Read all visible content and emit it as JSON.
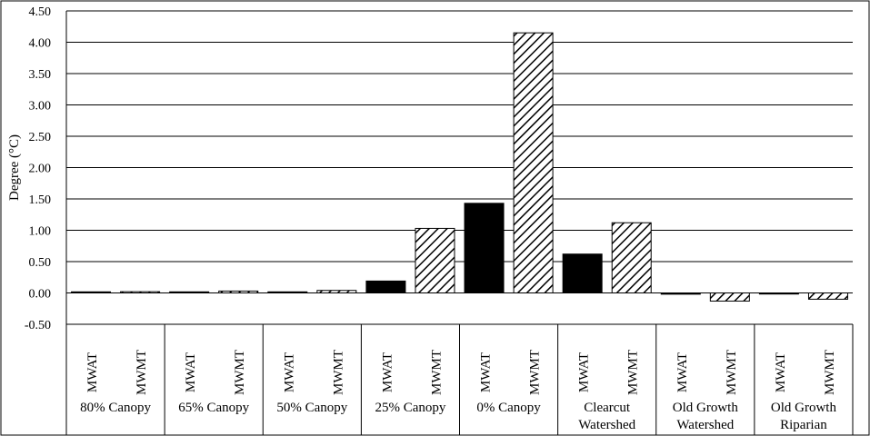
{
  "chart_data": {
    "type": "bar",
    "ylabel": "Degree (°C)",
    "ylim": [
      -0.5,
      4.5
    ],
    "ytick_step": 0.5,
    "grid": true,
    "groups": [
      {
        "label": [
          "80% Canopy"
        ],
        "bars": [
          {
            "label": "MWAT",
            "value": 0.0
          },
          {
            "label": "MWMT",
            "value": 0.02
          }
        ]
      },
      {
        "label": [
          "65% Canopy"
        ],
        "bars": [
          {
            "label": "MWAT",
            "value": 0.0
          },
          {
            "label": "MWMT",
            "value": 0.03
          }
        ]
      },
      {
        "label": [
          "50% Canopy"
        ],
        "bars": [
          {
            "label": "MWAT",
            "value": 0.01
          },
          {
            "label": "MWMT",
            "value": 0.04
          }
        ]
      },
      {
        "label": [
          "25% Canopy"
        ],
        "bars": [
          {
            "label": "MWAT",
            "value": 0.19
          },
          {
            "label": "MWMT",
            "value": 1.03
          }
        ]
      },
      {
        "label": [
          "0% Canopy"
        ],
        "bars": [
          {
            "label": "MWAT",
            "value": 1.43
          },
          {
            "label": "MWMT",
            "value": 4.15
          }
        ]
      },
      {
        "label": [
          "Clearcut",
          "Watershed"
        ],
        "bars": [
          {
            "label": "MWAT",
            "value": 0.62
          },
          {
            "label": "MWMT",
            "value": 1.12
          }
        ]
      },
      {
        "label": [
          "Old Growth",
          "Watershed"
        ],
        "bars": [
          {
            "label": "MWAT",
            "value": -0.02
          },
          {
            "label": "MWMT",
            "value": -0.13
          }
        ]
      },
      {
        "label": [
          "Old Growth",
          "Riparian"
        ],
        "bars": [
          {
            "label": "MWAT",
            "value": -0.01
          },
          {
            "label": "MWMT",
            "value": -0.1
          }
        ]
      }
    ],
    "series_styles": {
      "MWAT": "solid-black",
      "MWMT": "diagonal-hatch"
    },
    "colors": {
      "bar_fill": "#000000",
      "hatch": "#000000",
      "grid": "#000000"
    }
  }
}
